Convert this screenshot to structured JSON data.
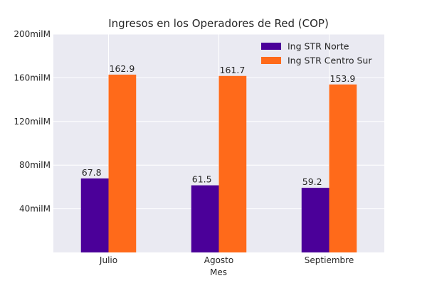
{
  "chart_data": {
    "type": "bar",
    "title": "Ingresos en los Operadores de Red (COP)",
    "xlabel": "Mes",
    "ylabel": "",
    "categories": [
      "Julio",
      "Agosto",
      "Septiembre"
    ],
    "series": [
      {
        "name": "Ing STR Norte",
        "values": [
          67.8,
          61.5,
          59.2
        ],
        "labels": [
          "67.8",
          "61.5",
          "59.2"
        ],
        "color": "#4B0099"
      },
      {
        "name": "Ing STR Centro Sur",
        "values": [
          162.9,
          161.7,
          153.9
        ],
        "labels": [
          "162.9",
          "161.7",
          "153.9"
        ],
        "color": "#FF6A1A"
      }
    ],
    "ylim": [
      0,
      200
    ],
    "yticks": [
      40,
      80,
      120,
      160,
      200
    ],
    "ytick_labels": [
      "40milM",
      "80milM",
      "120milM",
      "160milM",
      "200milM"
    ],
    "grid": true,
    "legend_position": "top-right",
    "background": "#EAEAF2"
  }
}
